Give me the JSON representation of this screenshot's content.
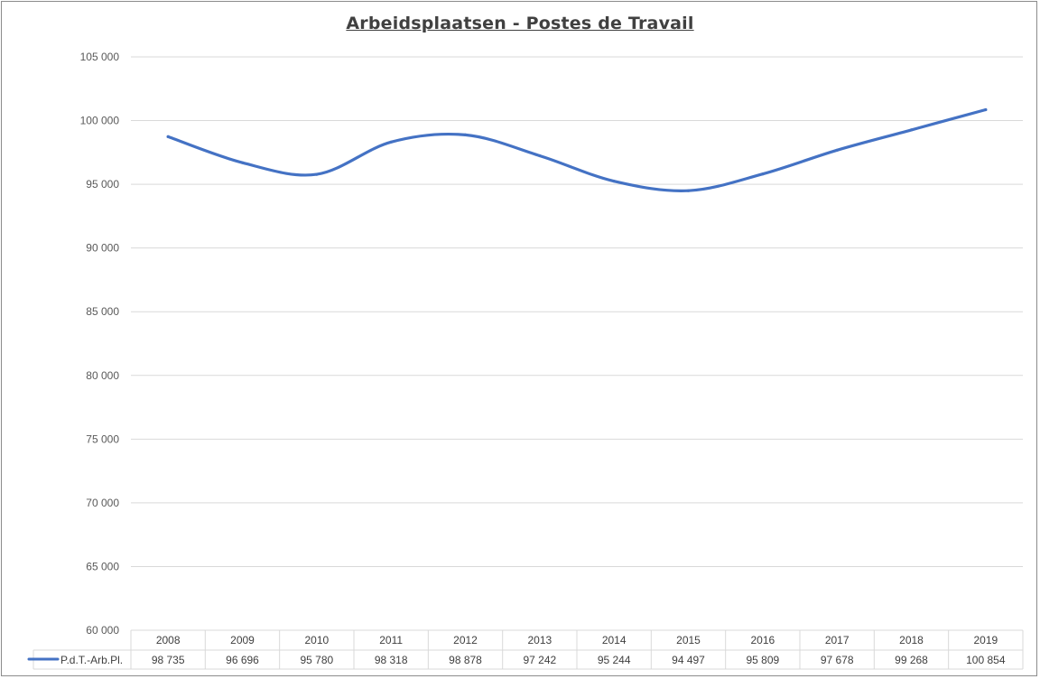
{
  "chart_data": {
    "type": "line",
    "title": "Arbeidsplaatsen - Postes de Travail",
    "categories": [
      "2008",
      "2009",
      "2010",
      "2011",
      "2012",
      "2013",
      "2014",
      "2015",
      "2016",
      "2017",
      "2018",
      "2019"
    ],
    "series": [
      {
        "name": "P.d.T.-Arb.Pl.",
        "values": [
          98735,
          96696,
          95780,
          98318,
          98878,
          97242,
          95244,
          94497,
          95809,
          97678,
          99268,
          100854
        ],
        "value_labels": [
          "98 735",
          "96 696",
          "95 780",
          "98 318",
          "98 878",
          "97 242",
          "95 244",
          "94 497",
          "95 809",
          "97 678",
          "99 268",
          "100 854"
        ]
      }
    ],
    "ylim": [
      60000,
      105000
    ],
    "yticks": [
      60000,
      65000,
      70000,
      75000,
      80000,
      85000,
      90000,
      95000,
      100000,
      105000
    ],
    "ytick_labels": [
      "60 000",
      "65 000",
      "70 000",
      "75 000",
      "80 000",
      "85 000",
      "90 000",
      "95 000",
      "100 000",
      "105 000"
    ],
    "grid": true,
    "legend": "data-table",
    "smooth": true,
    "colors": {
      "line": "#4472c4",
      "grid": "#d9d9d9",
      "text": "#595959"
    }
  }
}
